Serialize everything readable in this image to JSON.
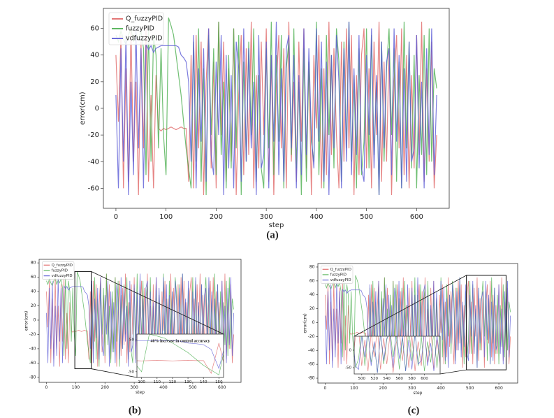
{
  "chart_data": [
    {
      "type": "line",
      "title": "(a)",
      "xlabel": "step",
      "ylabel": "error(cm)",
      "xlim": [
        -25,
        665
      ],
      "ylim": [
        -75,
        75
      ],
      "xticks": [
        0,
        100,
        200,
        300,
        400,
        500,
        600
      ],
      "yticks": [
        -60,
        -40,
        -20,
        0,
        20,
        40,
        60
      ],
      "legend": "upper left",
      "x": [
        0,
        5,
        10,
        15,
        20,
        25,
        30,
        35,
        40,
        45,
        50,
        55,
        60,
        65,
        70,
        75,
        80,
        85,
        90,
        95,
        100,
        105,
        110,
        115,
        120,
        125,
        130,
        135,
        140,
        145,
        150,
        155,
        160,
        165,
        170,
        175,
        180,
        185,
        190,
        195,
        200,
        205,
        210,
        215,
        220,
        225,
        230,
        235,
        240,
        245,
        250,
        255,
        260,
        265,
        270,
        275,
        280,
        285,
        290,
        295,
        300,
        305,
        310,
        315,
        320,
        325,
        330,
        335,
        340,
        345,
        350,
        355,
        360,
        365,
        370,
        375,
        380,
        385,
        390,
        395,
        400,
        405,
        410,
        415,
        420,
        425,
        430,
        435,
        440,
        445,
        450,
        455,
        460,
        465,
        470,
        475,
        480,
        485,
        490,
        495,
        500,
        505,
        510,
        515,
        520,
        525,
        530,
        535,
        540,
        545,
        550,
        555,
        560,
        565,
        570,
        575,
        580,
        585,
        590,
        595,
        600,
        605,
        610,
        615,
        620,
        625,
        630,
        635,
        640
      ],
      "series": [
        {
          "name": "Q_fuzzyPID",
          "color": "#e06666",
          "values": [
            40,
            -10,
            55,
            -60,
            30,
            -55,
            60,
            -40,
            20,
            -65,
            50,
            -30,
            60,
            -55,
            10,
            -60,
            25,
            -15,
            -17,
            -15,
            -16,
            -15,
            -14,
            -15,
            -16,
            -15,
            -14,
            -15,
            -15,
            -55,
            40,
            -60,
            55,
            -30,
            50,
            -65,
            20,
            60,
            -45,
            35,
            -60,
            65,
            -20,
            50,
            -55,
            30,
            -40,
            60,
            -65,
            10,
            55,
            -50,
            45,
            -35,
            65,
            -60,
            25,
            -45,
            50,
            -20,
            60,
            -55,
            40,
            -65,
            15,
            55,
            -30,
            45,
            -60,
            65,
            -40,
            20,
            -55,
            50,
            -25,
            60,
            -45,
            35,
            -65,
            40,
            -15,
            55,
            -60,
            30,
            -50,
            65,
            -35,
            45,
            -20,
            -60,
            50,
            -40,
            60,
            -30,
            55,
            -65,
            25,
            -50,
            40,
            60,
            -45,
            30,
            -60,
            50,
            -20,
            65,
            -55,
            35,
            -40,
            45,
            -65,
            20,
            55,
            -30,
            60,
            -50,
            40,
            -60,
            25,
            -45,
            55,
            -35,
            65,
            -55,
            30,
            -40,
            50,
            -60,
            -20
          ]
        },
        {
          "name": "fuzzyPID",
          "color": "#4caf50",
          "values": [
            55,
            50,
            58,
            52,
            48,
            55,
            60,
            50,
            56,
            52,
            58,
            45,
            -50,
            60,
            -40,
            55,
            40,
            -30,
            45,
            -20,
            -50,
            68,
            62,
            55,
            40,
            25,
            10,
            -10,
            -30,
            -45,
            -60,
            50,
            -40,
            60,
            -55,
            30,
            -65,
            55,
            -20,
            45,
            -50,
            65,
            -35,
            20,
            -60,
            40,
            -45,
            60,
            -30,
            55,
            -65,
            35,
            -40,
            50,
            -20,
            60,
            -55,
            25,
            -45,
            -60,
            45,
            -30,
            65,
            -50,
            40,
            -25,
            55,
            -60,
            30,
            50,
            -35,
            60,
            -45,
            20,
            -65,
            45,
            -55,
            35,
            -25,
            -40,
            65,
            -50,
            30,
            -60,
            55,
            -20,
            40,
            -45,
            60,
            35,
            -55,
            50,
            -30,
            65,
            -40,
            25,
            -60,
            45,
            -50,
            -25,
            60,
            -45,
            55,
            -35,
            20,
            -65,
            50,
            -40,
            30,
            60,
            -20,
            45,
            -55,
            35,
            -60,
            65,
            -30,
            50,
            -45,
            40,
            -60,
            25,
            -35,
            55,
            -50,
            60,
            -40,
            30,
            15
          ]
        },
        {
          "name": "vdfuzzyPID",
          "color": "#5b5bd6",
          "values": [
            10,
            -60,
            45,
            -40,
            55,
            -65,
            20,
            -50,
            60,
            -30,
            45,
            -60,
            48,
            44,
            47,
            42,
            45,
            46,
            47,
            47,
            47,
            47,
            47,
            47,
            47,
            46,
            40,
            38,
            35,
            20,
            -40,
            55,
            -60,
            30,
            -25,
            45,
            -55,
            60,
            -35,
            -50,
            35,
            -20,
            55,
            -65,
            40,
            -45,
            25,
            -60,
            50,
            30,
            -55,
            60,
            -40,
            45,
            -30,
            20,
            -65,
            55,
            -45,
            -35,
            50,
            -60,
            40,
            -25,
            65,
            -50,
            30,
            -55,
            45,
            55,
            -30,
            40,
            -60,
            25,
            -50,
            60,
            -35,
            45,
            -20,
            -45,
            60,
            -25,
            50,
            -55,
            35,
            -65,
            40,
            -30,
            55,
            20,
            -60,
            45,
            -40,
            65,
            -50,
            30,
            -35,
            55,
            -45,
            -55,
            40,
            -20,
            60,
            -45,
            25,
            -65,
            50,
            -30,
            35,
            45,
            -50,
            60,
            -25,
            40,
            -60,
            30,
            -55,
            50,
            -40,
            -30,
            55,
            -45,
            20,
            -60,
            45,
            -35,
            60,
            -50,
            10
          ]
        }
      ]
    },
    {
      "type": "line",
      "title": "(b)",
      "xlabel": "step",
      "ylabel": "error(cm)",
      "xlim": [
        -25,
        665
      ],
      "ylim": [
        -87,
        85
      ],
      "xticks": [
        0,
        100,
        200,
        300,
        400,
        500,
        600
      ],
      "yticks": [
        -80,
        -60,
        -40,
        -20,
        0,
        20,
        40,
        60,
        80
      ],
      "legend": "upper left",
      "series": [
        {
          "name": "Q_fuzzyPID",
          "color": "#e06666"
        },
        {
          "name": "fuzzyPID",
          "color": "#4caf50"
        },
        {
          "name": "vdfuzzyPID",
          "color": "#5b5bd6"
        }
      ],
      "inset": {
        "xlim": [
          97,
          153
        ],
        "ylim": [
          -68,
          68
        ],
        "xticks": [
          100,
          110,
          120,
          130,
          140,
          150
        ],
        "yticks": [
          -50,
          50
        ],
        "annotation": "40% increase in control accuracy"
      }
    },
    {
      "type": "line",
      "title": "(c)",
      "xlabel": "step",
      "ylabel": "error(cm)",
      "xlim": [
        -25,
        665
      ],
      "ylim": [
        -87,
        85
      ],
      "xticks": [
        0,
        100,
        200,
        300,
        400,
        500,
        600
      ],
      "yticks": [
        -80,
        -60,
        -40,
        -20,
        0,
        20,
        40,
        60,
        80
      ],
      "legend": "upper left",
      "series": [
        {
          "name": "Q_fuzzyPID",
          "color": "#e06666"
        },
        {
          "name": "fuzzyPID",
          "color": "#4caf50"
        },
        {
          "name": "vdfuzzyPID",
          "color": "#5b5bd6"
        }
      ],
      "inset": {
        "xlim": [
          488,
          625
        ],
        "ylim": [
          -68,
          40
        ],
        "xticks": [
          500,
          520,
          540,
          560,
          580,
          600
        ],
        "yticks": [
          -50,
          0
        ]
      }
    }
  ]
}
